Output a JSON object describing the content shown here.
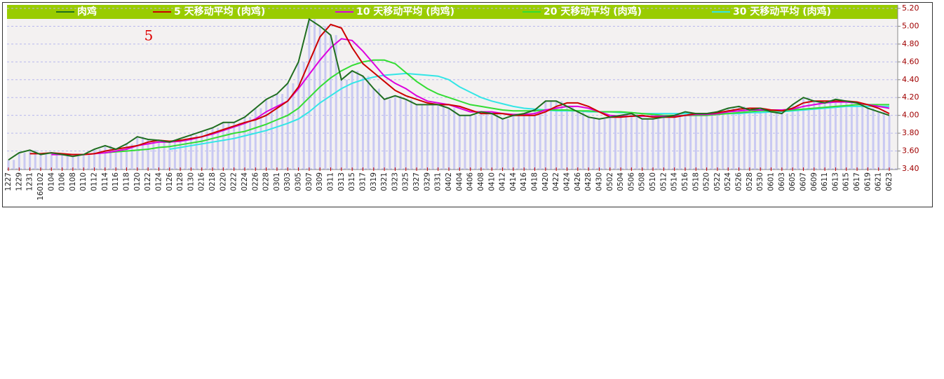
{
  "chart_data": {
    "type": "line",
    "annotation": "5",
    "categories": [
      "1227",
      "1229",
      "1231",
      "160102",
      "0104",
      "0106",
      "0108",
      "0110",
      "0112",
      "0114",
      "0116",
      "0118",
      "0120",
      "0122",
      "0124",
      "0126",
      "0128",
      "0130",
      "0216",
      "0218",
      "0220",
      "0222",
      "0224",
      "0226",
      "0228",
      "0301",
      "0303",
      "0305",
      "0307",
      "0309",
      "0311",
      "0313",
      "0315",
      "0317",
      "0319",
      "0321",
      "0323",
      "0325",
      "0327",
      "0329",
      "0331",
      "0402",
      "0404",
      "0406",
      "0408",
      "0410",
      "0412",
      "0414",
      "0416",
      "0418",
      "0420",
      "0422",
      "0424",
      "0426",
      "0428",
      "0430",
      "0502",
      "0504",
      "0506",
      "0508",
      "0510",
      "0512",
      "0514",
      "0516",
      "0518",
      "0520",
      "0522",
      "0524",
      "0526",
      "0528",
      "0530",
      "0601",
      "0603",
      "0605",
      "0607",
      "0609",
      "0611",
      "0613",
      "0615",
      "0617",
      "0619",
      "0621",
      "0623"
    ],
    "series": [
      {
        "name": "肉鸡",
        "color": "#1f6e1f",
        "values": [
          3.5,
          3.58,
          3.61,
          3.56,
          3.58,
          3.56,
          3.54,
          3.56,
          3.62,
          3.66,
          3.62,
          3.68,
          3.76,
          3.73,
          3.72,
          3.7,
          3.74,
          3.78,
          3.82,
          3.86,
          3.92,
          3.92,
          3.98,
          4.08,
          4.18,
          4.24,
          4.36,
          4.6,
          5.08,
          5.0,
          4.9,
          4.4,
          4.5,
          4.44,
          4.3,
          4.18,
          4.22,
          4.18,
          4.12,
          4.12,
          4.12,
          4.08,
          4.0,
          4.0,
          4.04,
          4.02,
          3.96,
          4.0,
          4.02,
          4.06,
          4.16,
          4.16,
          4.1,
          4.04,
          3.98,
          3.96,
          3.98,
          4.0,
          4.02,
          3.96,
          3.96,
          3.98,
          4.0,
          4.04,
          4.02,
          4.02,
          4.04,
          4.08,
          4.1,
          4.06,
          4.08,
          4.04,
          4.02,
          4.12,
          4.2,
          4.16,
          4.14,
          4.18,
          4.16,
          4.14,
          4.08,
          4.04,
          4.0
        ]
      },
      {
        "name": "5 天移动平均 (肉鸡)",
        "color": "#cc0000",
        "values": [
          null,
          null,
          3.57,
          3.57,
          3.58,
          3.57,
          3.56,
          3.56,
          3.57,
          3.6,
          3.62,
          3.64,
          3.66,
          3.7,
          3.72,
          3.71,
          3.72,
          3.74,
          3.76,
          3.8,
          3.84,
          3.88,
          3.92,
          3.95,
          4.0,
          4.08,
          4.16,
          4.32,
          4.6,
          4.88,
          5.02,
          4.98,
          4.76,
          4.58,
          4.48,
          4.38,
          4.28,
          4.22,
          4.18,
          4.14,
          4.12,
          4.12,
          4.1,
          4.06,
          4.02,
          4.02,
          4.02,
          4.0,
          4.0,
          4.0,
          4.04,
          4.1,
          4.14,
          4.14,
          4.1,
          4.04,
          3.98,
          3.98,
          3.99,
          4.0,
          3.98,
          3.98,
          3.98,
          4.0,
          4.02,
          4.02,
          4.03,
          4.05,
          4.07,
          4.08,
          4.08,
          4.06,
          4.05,
          4.08,
          4.14,
          4.16,
          4.16,
          4.16,
          4.16,
          4.15,
          4.12,
          4.08,
          4.02
        ]
      },
      {
        "name": "10 天移动平均 (肉鸡)",
        "color": "#dd00dd",
        "values": [
          null,
          null,
          null,
          null,
          3.56,
          3.56,
          3.56,
          3.56,
          3.57,
          3.58,
          3.6,
          3.62,
          3.66,
          3.68,
          3.7,
          3.7,
          3.71,
          3.73,
          3.76,
          3.79,
          3.83,
          3.87,
          3.91,
          3.96,
          4.04,
          4.1,
          4.16,
          4.3,
          4.46,
          4.62,
          4.76,
          4.86,
          4.84,
          4.72,
          4.58,
          4.44,
          4.36,
          4.3,
          4.22,
          4.16,
          4.14,
          4.12,
          4.08,
          4.04,
          4.04,
          4.04,
          4.02,
          4.01,
          4.01,
          4.02,
          4.06,
          4.08,
          4.1,
          4.1,
          4.08,
          4.04,
          4.0,
          3.99,
          3.99,
          3.99,
          3.99,
          3.99,
          3.99,
          4.0,
          4.01,
          4.01,
          4.02,
          4.04,
          4.05,
          4.06,
          4.06,
          4.06,
          4.06,
          4.07,
          4.1,
          4.12,
          4.14,
          4.15,
          4.15,
          4.14,
          4.12,
          4.1,
          4.08
        ]
      },
      {
        "name": "20 天移动平均 (肉鸡)",
        "color": "#33dd33",
        "values": [
          null,
          null,
          null,
          null,
          null,
          null,
          null,
          null,
          null,
          3.58,
          3.59,
          3.6,
          3.61,
          3.62,
          3.64,
          3.65,
          3.67,
          3.69,
          3.71,
          3.74,
          3.77,
          3.8,
          3.82,
          3.86,
          3.9,
          3.95,
          4.0,
          4.08,
          4.2,
          4.32,
          4.42,
          4.5,
          4.56,
          4.6,
          4.62,
          4.62,
          4.58,
          4.48,
          4.38,
          4.3,
          4.24,
          4.2,
          4.16,
          4.12,
          4.1,
          4.08,
          4.06,
          4.05,
          4.05,
          4.05,
          4.06,
          4.06,
          4.06,
          4.05,
          4.05,
          4.04,
          4.04,
          4.04,
          4.03,
          4.02,
          4.01,
          4.0,
          4.0,
          4.0,
          4.0,
          4.0,
          4.01,
          4.02,
          4.03,
          4.04,
          4.05,
          4.05,
          4.05,
          4.06,
          4.07,
          4.08,
          4.09,
          4.1,
          4.11,
          4.12,
          4.12,
          4.12,
          4.12
        ]
      },
      {
        "name": "30 天移动平均 (肉鸡)",
        "color": "#33e6e6",
        "values": [
          null,
          null,
          null,
          null,
          null,
          null,
          null,
          null,
          null,
          null,
          null,
          null,
          null,
          null,
          null,
          3.62,
          3.64,
          3.66,
          3.68,
          3.7,
          3.72,
          3.74,
          3.77,
          3.8,
          3.83,
          3.87,
          3.91,
          3.96,
          4.04,
          4.14,
          4.22,
          4.3,
          4.36,
          4.4,
          4.43,
          4.45,
          4.46,
          4.47,
          4.46,
          4.45,
          4.44,
          4.4,
          4.32,
          4.26,
          4.2,
          4.16,
          4.13,
          4.1,
          4.08,
          4.07,
          4.06,
          4.05,
          4.05,
          4.05,
          4.04,
          4.04,
          4.04,
          4.03,
          4.03,
          4.02,
          4.02,
          4.02,
          4.02,
          4.02,
          4.02,
          4.02,
          4.02,
          4.02,
          4.02,
          4.03,
          4.03,
          4.04,
          4.04,
          4.05,
          4.06,
          4.07,
          4.08,
          4.09,
          4.1,
          4.1,
          4.1,
          4.1,
          4.1
        ]
      }
    ],
    "bar_color": "#c9c9f2",
    "ylim": [
      3.4,
      5.2
    ],
    "yticks": [
      {
        "value": 3.4,
        "label": "3.40"
      },
      {
        "value": 3.6,
        "label": "3.60"
      },
      {
        "value": 3.8,
        "label": "3.80"
      },
      {
        "value": 4.0,
        "label": "4.00"
      },
      {
        "value": 4.2,
        "label": "4.20"
      },
      {
        "value": 4.4,
        "label": "4.40"
      },
      {
        "value": 4.6,
        "label": "4.60"
      },
      {
        "value": 4.8,
        "label": "4.80"
      },
      {
        "value": 5.0,
        "label": "5.00"
      },
      {
        "value": 5.2,
        "label": "5.20"
      }
    ],
    "grid": true
  }
}
